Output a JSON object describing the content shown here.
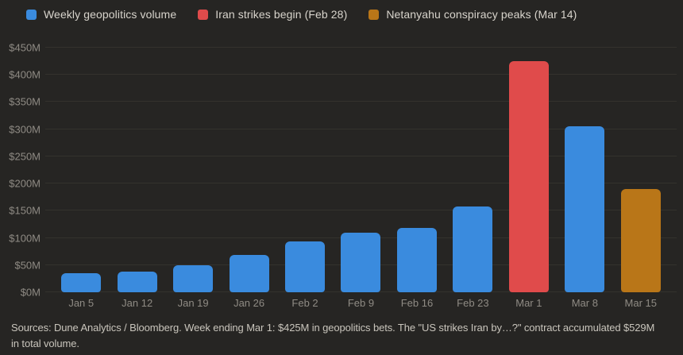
{
  "colors": {
    "background": "#262523",
    "gridline": "#34322d",
    "blue": "#3a8bde",
    "red": "#e04b4b",
    "orange": "#b97618",
    "legend_text": "#d8d4cc",
    "axis_text": "#8f8b84",
    "footer_text": "#c9c5bc"
  },
  "legend": [
    {
      "label": "Weekly geopolitics volume",
      "color": "#3a8bde",
      "swatch": "blue-square-icon"
    },
    {
      "label": "Iran strikes begin (Feb 28)",
      "color": "#e04b4b",
      "swatch": "red-square-icon"
    },
    {
      "label": "Netanyahu conspiracy peaks (Mar 14)",
      "color": "#b97618",
      "swatch": "orange-square-icon"
    }
  ],
  "chart_data": {
    "type": "bar",
    "title": "",
    "xlabel": "",
    "ylabel": "",
    "categories": [
      "Jan 5",
      "Jan 12",
      "Jan 19",
      "Jan 26",
      "Feb 2",
      "Feb 9",
      "Feb 16",
      "Feb 23",
      "Mar 1",
      "Mar 8",
      "Mar 15"
    ],
    "values": [
      35,
      38,
      50,
      68,
      94,
      110,
      118,
      158,
      425,
      305,
      190
    ],
    "bar_colors": [
      "blue",
      "blue",
      "blue",
      "blue",
      "blue",
      "blue",
      "blue",
      "blue",
      "red",
      "blue",
      "orange"
    ],
    "ylim": [
      0,
      450
    ],
    "ytick_step": 50,
    "ytick_labels": [
      "$0M",
      "$50M",
      "$100M",
      "$150M",
      "$200M",
      "$250M",
      "$300M",
      "$350M",
      "$400M",
      "$450M"
    ],
    "grid": true,
    "legend_position": "top-left",
    "annotations": {
      "red_bar_week": "Mar 1",
      "red_bar_value_label": "$425M",
      "orange_bar_week": "Mar 15"
    }
  },
  "footer": {
    "text": "Sources: Dune Analytics / Bloomberg. Week ending Mar 1: $425M in geopolitics bets. The \"US strikes Iran by…?\" contract accumulated $529M in total volume."
  }
}
